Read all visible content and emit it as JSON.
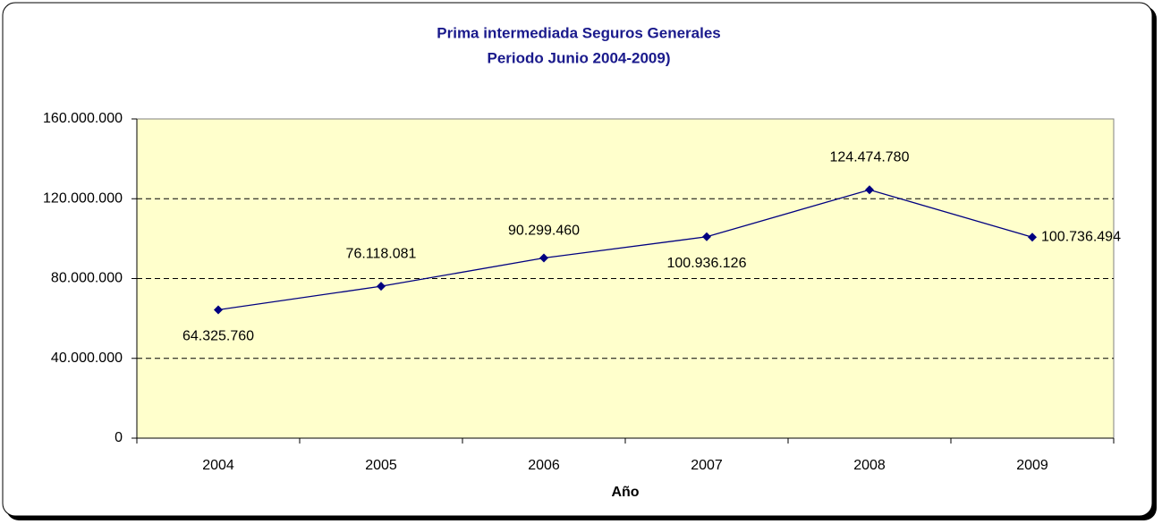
{
  "chart_data": {
    "type": "line",
    "title": "Prima intermediada  Seguros Generales",
    "subtitle": "Periodo Junio 2004-2009)",
    "x_label": "Año",
    "categories": [
      "2004",
      "2005",
      "2006",
      "2007",
      "2008",
      "2009"
    ],
    "series": [
      {
        "name": "Prima intermediada",
        "color": "#000080",
        "values": [
          64325760,
          76118081,
          90299460,
          100936126,
          124474780,
          100736494
        ],
        "value_labels": [
          "64.325.760",
          "76.118.081",
          "90.299.460",
          "100.936.126",
          "124.474.780",
          "100.736.494"
        ]
      }
    ],
    "ylim": [
      0,
      160000000
    ],
    "yticks": [
      0,
      {
        "value": 40000000,
        "label": "40.000.000"
      },
      {
        "value": 80000000,
        "label": "80.000.000"
      },
      {
        "value": 120000000,
        "label": "120.000.000"
      },
      {
        "value": 160000000,
        "label": "160.000.000"
      }
    ],
    "grid": true
  }
}
